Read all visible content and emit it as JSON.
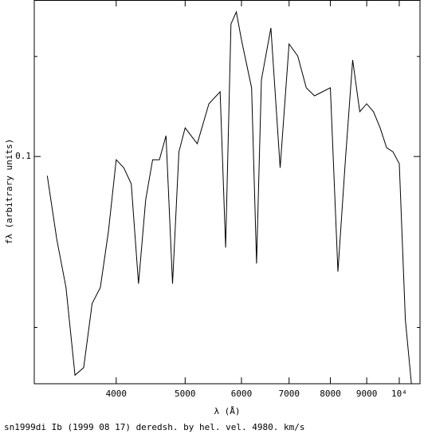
{
  "chart_data": {
    "type": "line",
    "caption": "sn1999di Ib (1999 08 17) deredsh. by hel. vel.  4980. km/s",
    "x_label": "λ (Å)",
    "y_label": "fλ (arbitrary units)",
    "x": [
      3200,
      3300,
      3400,
      3500,
      3600,
      3700,
      3800,
      3900,
      4000,
      4100,
      4200,
      4300,
      4400,
      4500,
      4600,
      4700,
      4800,
      4900,
      5000,
      5200,
      5400,
      5600,
      5700,
      5800,
      5900,
      6000,
      6200,
      6300,
      6400,
      6600,
      6800,
      7000,
      7200,
      7400,
      7600,
      7800,
      8000,
      8200,
      8400,
      8600,
      8800,
      9000,
      9200,
      9400,
      9600,
      9800,
      10000,
      10200,
      10400
    ],
    "series": [
      {
        "color": "#000000",
        "values": [
          0.0925,
          0.0714,
          0.0588,
          0.0412,
          0.0425,
          0.0551,
          0.0588,
          0.0737,
          0.0987,
          0.0955,
          0.0895,
          0.0597,
          0.0839,
          0.0987,
          0.0987,
          0.1088,
          0.0597,
          0.1019,
          0.1123,
          0.1053,
          0.1238,
          0.13,
          0.0691,
          0.1711,
          0.1797,
          0.1604,
          0.1321,
          0.0648,
          0.1365,
          0.1684,
          0.0955,
          0.1578,
          0.1503,
          0.1321,
          0.1279,
          0.13,
          0.1321,
          0.0627,
          0.0987,
          0.1479,
          0.1199,
          0.1238,
          0.1199,
          0.1123,
          0.1036,
          0.1019,
          0.0971,
          0.0516,
          0.0398
        ]
      }
    ],
    "xlog": true,
    "ylog": true,
    "xlim": [
      3068,
      10695
    ],
    "ylim": [
      0.0398,
      0.1886
    ],
    "xticks": [
      4000,
      5000,
      6000,
      7000,
      8000,
      9000,
      {
        "value": 10000,
        "label": "10⁴"
      }
    ],
    "yticks": [
      0.1
    ],
    "yminor": [
      0.05,
      0.15
    ]
  }
}
